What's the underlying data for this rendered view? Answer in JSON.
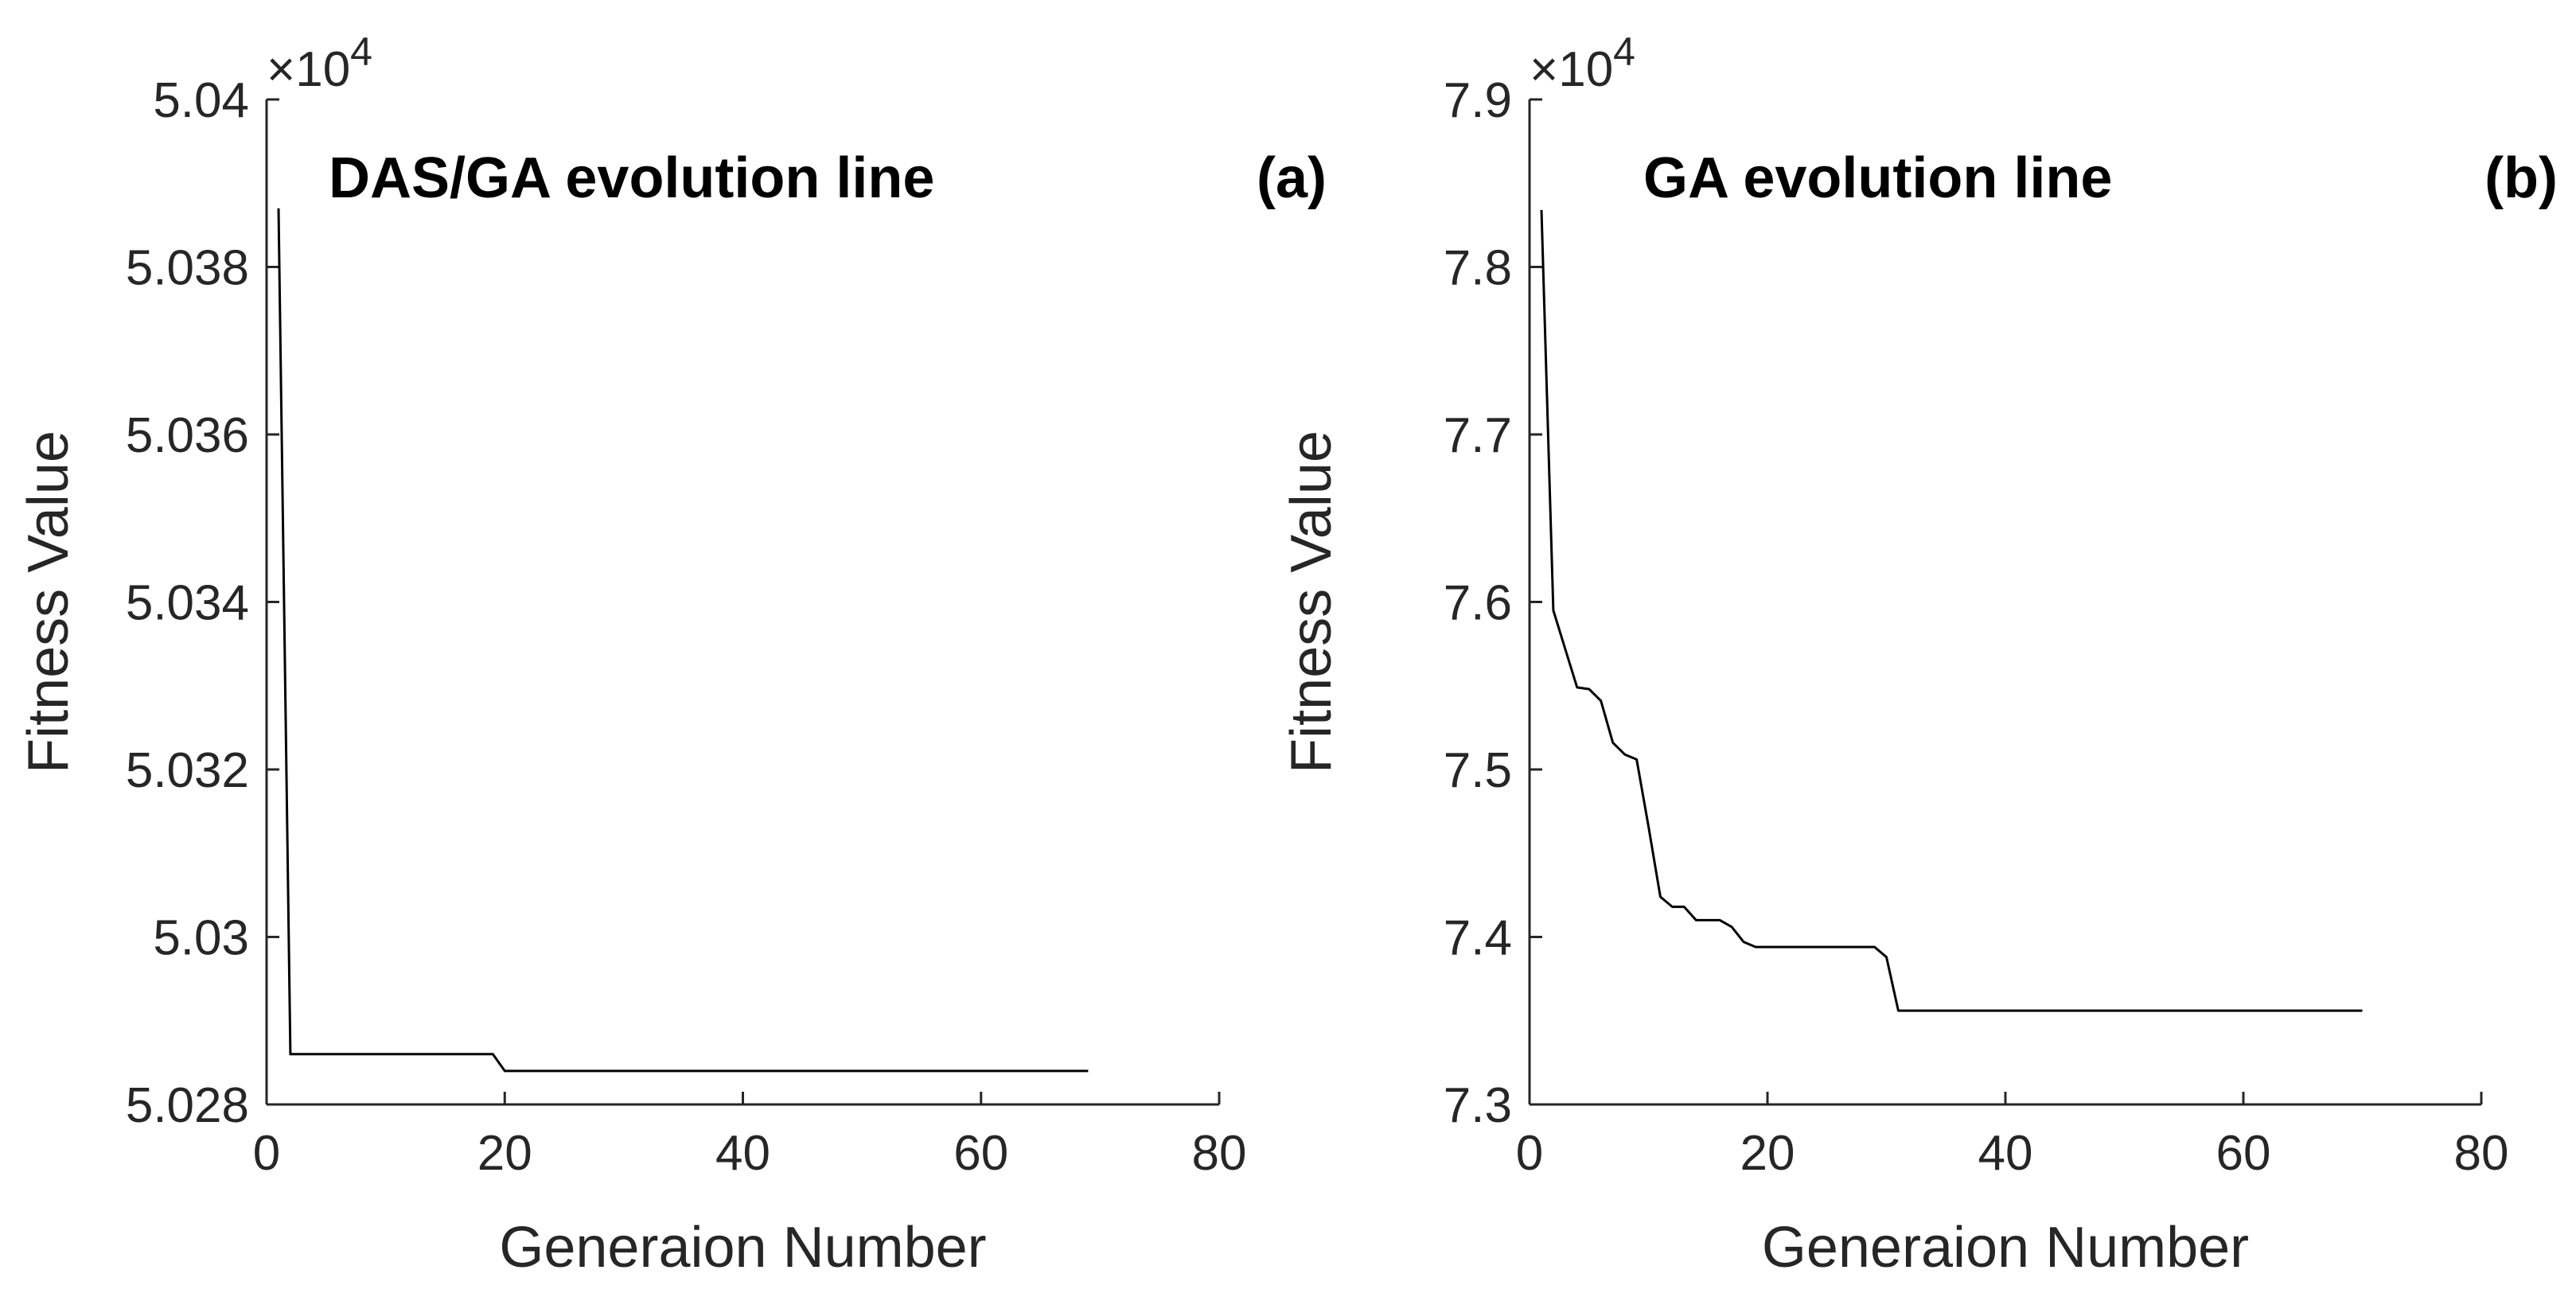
{
  "chart_data": [
    {
      "type": "line",
      "panel_label": "(a)",
      "title": "DAS/GA evolution line",
      "xlabel": "Generaion Number",
      "ylabel": "Fitness Value",
      "exponent_label": "×10",
      "exponent_power": "4",
      "xlim": [
        0,
        80
      ],
      "ylim": [
        5.028,
        5.04
      ],
      "xticks": [
        0,
        20,
        40,
        60,
        80
      ],
      "xtick_labels": [
        "0",
        "20",
        "40",
        "60",
        "80"
      ],
      "yticks": [
        5.028,
        5.03,
        5.032,
        5.034,
        5.036,
        5.038,
        5.04
      ],
      "ytick_labels": [
        "5.028",
        "5.03",
        "5.032",
        "5.034",
        "5.036",
        "5.038",
        "5.04"
      ],
      "grid": false,
      "series": [
        {
          "name": "DAS/GA",
          "x": [
            1,
            2,
            19,
            20,
            69
          ],
          "y": [
            5.0387,
            5.0286,
            5.0286,
            5.0284,
            5.0284
          ]
        }
      ]
    },
    {
      "type": "line",
      "panel_label": "(b)",
      "title": "GA evolution line",
      "xlabel": "Generaion Number",
      "ylabel": "Fitness Value",
      "exponent_label": "×10",
      "exponent_power": "4",
      "xlim": [
        0,
        80
      ],
      "ylim": [
        7.3,
        7.9
      ],
      "xticks": [
        0,
        20,
        40,
        60,
        80
      ],
      "xtick_labels": [
        "0",
        "20",
        "40",
        "60",
        "80"
      ],
      "yticks": [
        7.3,
        7.4,
        7.5,
        7.6,
        7.7,
        7.8,
        7.9
      ],
      "ytick_labels": [
        "7.3",
        "7.4",
        "7.5",
        "7.6",
        "7.7",
        "7.8",
        "7.9"
      ],
      "grid": false,
      "series": [
        {
          "name": "GA",
          "x": [
            1,
            2,
            3,
            4,
            5,
            6,
            7,
            8,
            9,
            10,
            11,
            12,
            13,
            14,
            15,
            16,
            17,
            18,
            19,
            20,
            25,
            29,
            30,
            31,
            40,
            50,
            60,
            70
          ],
          "y": [
            7.834,
            7.595,
            7.572,
            7.549,
            7.548,
            7.541,
            7.516,
            7.509,
            7.506,
            7.466,
            7.424,
            7.418,
            7.418,
            7.41,
            7.41,
            7.41,
            7.406,
            7.397,
            7.394,
            7.394,
            7.394,
            7.394,
            7.388,
            7.356,
            7.356,
            7.356,
            7.356,
            7.356
          ]
        }
      ]
    }
  ]
}
